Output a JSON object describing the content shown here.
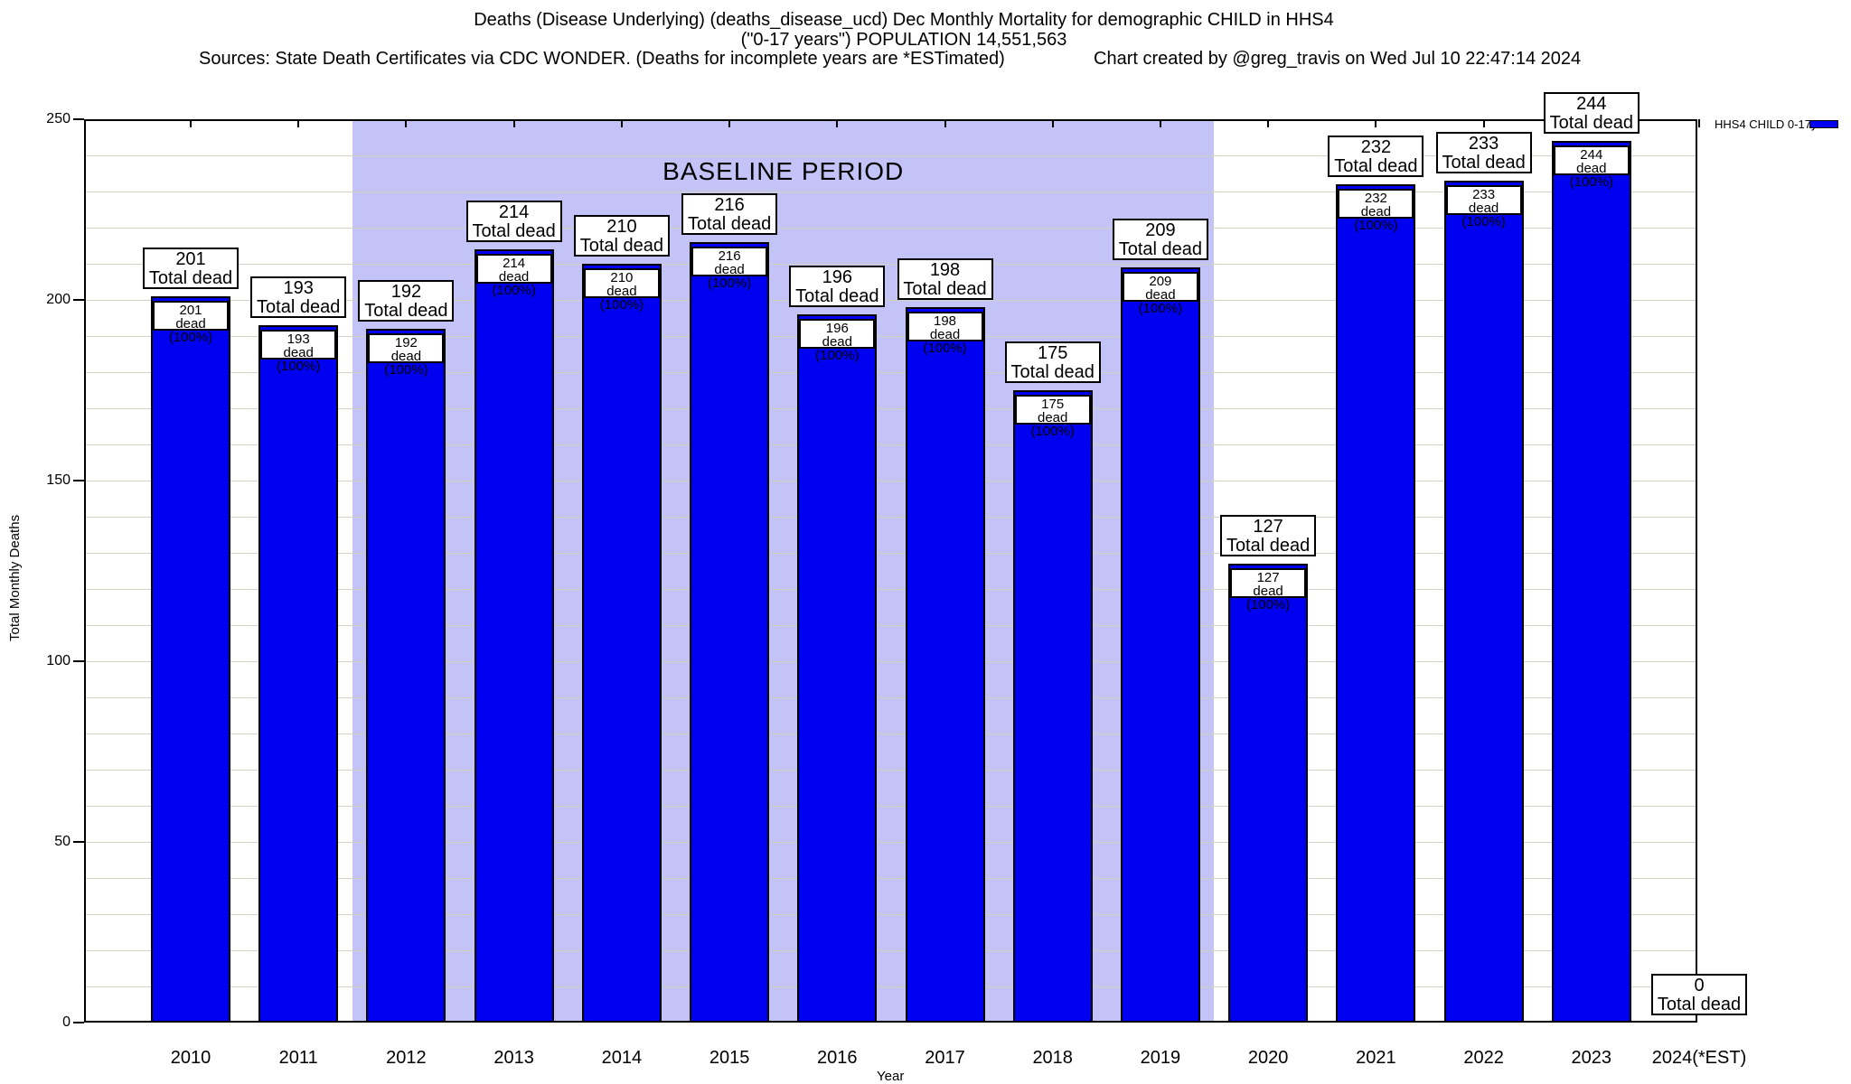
{
  "header": {
    "title_line1": "Deaths (Disease Underlying) (deaths_disease_ucd) Dec Monthly Mortality for demographic CHILD in HHS4",
    "title_line2": "(\"0-17 years\") POPULATION 14,551,563",
    "sources_note": "Sources: State Death Certificates via CDC WONDER. (Deaths for incomplete years are *ESTimated)",
    "created_note": "Chart created by @greg_travis on Wed Jul 10 22:47:14 2024"
  },
  "legend": {
    "series_label": "HHS4 CHILD 0-17yo",
    "swatch_color": "#0000f0"
  },
  "chart_data": {
    "type": "bar",
    "title": "Deaths (Disease Underlying) (deaths_disease_ucd) Dec Monthly Mortality for demographic CHILD in HHS4 (\"0-17 years\") POPULATION 14,551,563",
    "xlabel": "Year",
    "ylabel": "Total Monthly Deaths",
    "ylim": [
      0,
      250
    ],
    "ytick_interval_major": 50,
    "grid_interval_minor": 10,
    "grid": true,
    "legend_position": "top-right",
    "categories": [
      "2010",
      "2011",
      "2012",
      "2013",
      "2014",
      "2015",
      "2016",
      "2017",
      "2018",
      "2019",
      "2020",
      "2021",
      "2022",
      "2023",
      "2024(*EST)"
    ],
    "series": [
      {
        "name": "HHS4 CHILD 0-17yo",
        "color": "#0000f0",
        "values": [
          201,
          193,
          192,
          214,
          210,
          216,
          196,
          198,
          175,
          209,
          127,
          232,
          233,
          244,
          0
        ]
      }
    ],
    "yticks": [
      "0",
      "50",
      "100",
      "150",
      "200",
      "250"
    ],
    "bar_top_label_suffix": "Total dead",
    "bar_inner_label_suffix": "dead (100%)",
    "baseline": {
      "label": "BASELINE PERIOD",
      "from_category": "2012",
      "to_category": "2019",
      "fill_color": "#c3c3f8"
    }
  }
}
